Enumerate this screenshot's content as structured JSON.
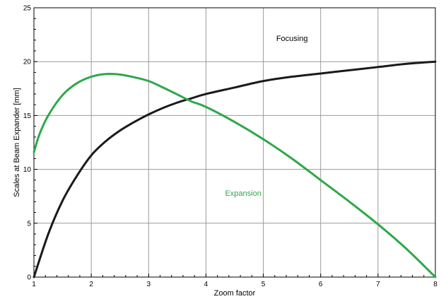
{
  "chart_data": {
    "type": "line",
    "title": "",
    "xlabel": "Zoom factor",
    "ylabel": "Scales at Beam Expander [mm]",
    "xlim": [
      1,
      8
    ],
    "ylim": [
      0,
      25
    ],
    "xticks": [
      1,
      2,
      3,
      4,
      5,
      6,
      7,
      8
    ],
    "yticks": [
      0,
      5,
      10,
      15,
      20,
      25
    ],
    "grid": true,
    "legend": "none",
    "series": [
      {
        "name": "Focusing",
        "color": "#1a1a1a",
        "x": [
          1,
          1.25,
          1.5,
          1.75,
          2,
          2.25,
          2.5,
          2.75,
          3,
          3.25,
          3.5,
          3.75,
          4,
          4.5,
          5,
          5.5,
          6,
          6.5,
          7,
          7.5,
          8
        ],
        "y": [
          0,
          4.0,
          7.1,
          9.4,
          11.3,
          12.6,
          13.6,
          14.4,
          15.1,
          15.7,
          16.2,
          16.6,
          17.0,
          17.6,
          18.2,
          18.6,
          18.9,
          19.2,
          19.5,
          19.8,
          20.0
        ]
      },
      {
        "name": "Expansion",
        "color": "#2ea84a",
        "x": [
          1,
          1.1,
          1.25,
          1.5,
          1.75,
          2,
          2.25,
          2.5,
          2.75,
          3,
          3.25,
          3.5,
          3.75,
          4,
          4.5,
          5,
          5.5,
          6,
          6.5,
          7,
          7.5,
          8
        ],
        "y": [
          11.6,
          13.3,
          15.0,
          16.9,
          18.0,
          18.6,
          18.85,
          18.8,
          18.55,
          18.2,
          17.6,
          16.95,
          16.3,
          15.8,
          14.4,
          12.8,
          11.0,
          9.0,
          7.0,
          4.9,
          2.6,
          0
        ]
      }
    ],
    "annotations": [
      {
        "text": "Focusing",
        "color": "#000000",
        "x": 5.5,
        "y": 21.9
      },
      {
        "text": "Expansion",
        "color": "#2ea84a",
        "x": 4.65,
        "y": 7.55
      }
    ]
  }
}
